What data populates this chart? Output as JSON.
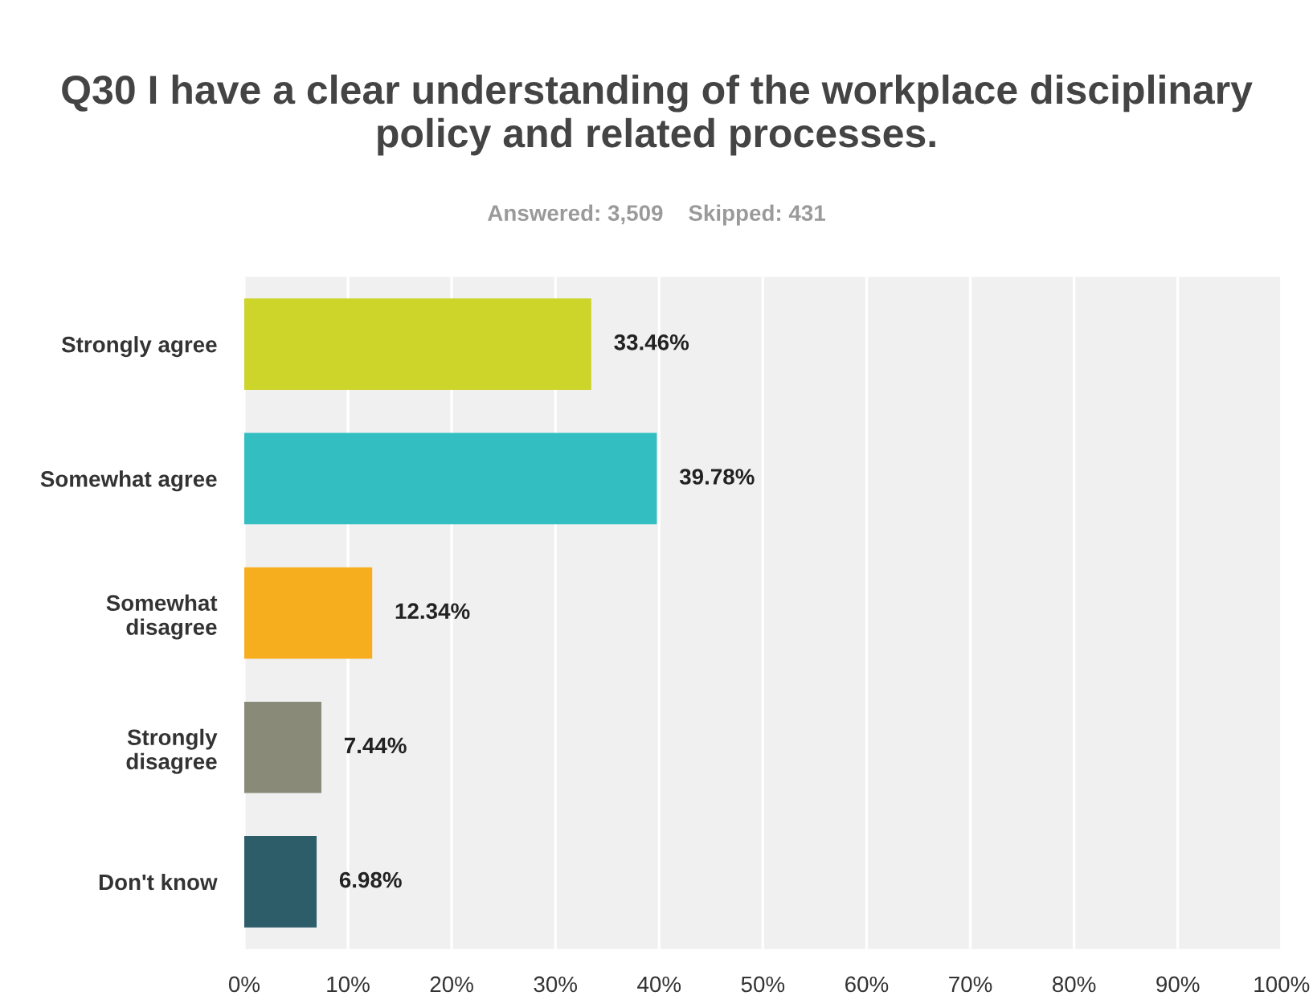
{
  "chart_data": {
    "type": "bar",
    "orientation": "horizontal",
    "title": "Q30 I have a clear understanding of the workplace disciplinary policy and related processes.",
    "subtitle": "Answered: 3,509    Skipped: 431",
    "categories": [
      "Strongly agree",
      "Somewhat agree",
      "Somewhat\ndisagree",
      "Strongly\ndisagree",
      "Don't know"
    ],
    "values": [
      33.46,
      39.78,
      12.34,
      7.44,
      6.98
    ],
    "colors": [
      "#cdd42a",
      "#33bec1",
      "#f6ae1e",
      "#8a8a78",
      "#2e5d6a"
    ],
    "value_labels": [
      "33.46%",
      "39.78%",
      "12.34%",
      "7.44%",
      "6.98%"
    ],
    "xlim": [
      0,
      100
    ],
    "xticks": [
      {
        "value": 0,
        "label": "0%"
      },
      {
        "value": 10,
        "label": "10%"
      },
      {
        "value": 20,
        "label": "20%"
      },
      {
        "value": 30,
        "label": "30%"
      },
      {
        "value": 40,
        "label": "40%"
      },
      {
        "value": 50,
        "label": "50%"
      },
      {
        "value": 60,
        "label": "60%"
      },
      {
        "value": 70,
        "label": "70%"
      },
      {
        "value": 80,
        "label": "80%"
      },
      {
        "value": 90,
        "label": "90%"
      },
      {
        "value": 100,
        "label": "100%"
      }
    ],
    "grid": "x",
    "legend": false
  }
}
